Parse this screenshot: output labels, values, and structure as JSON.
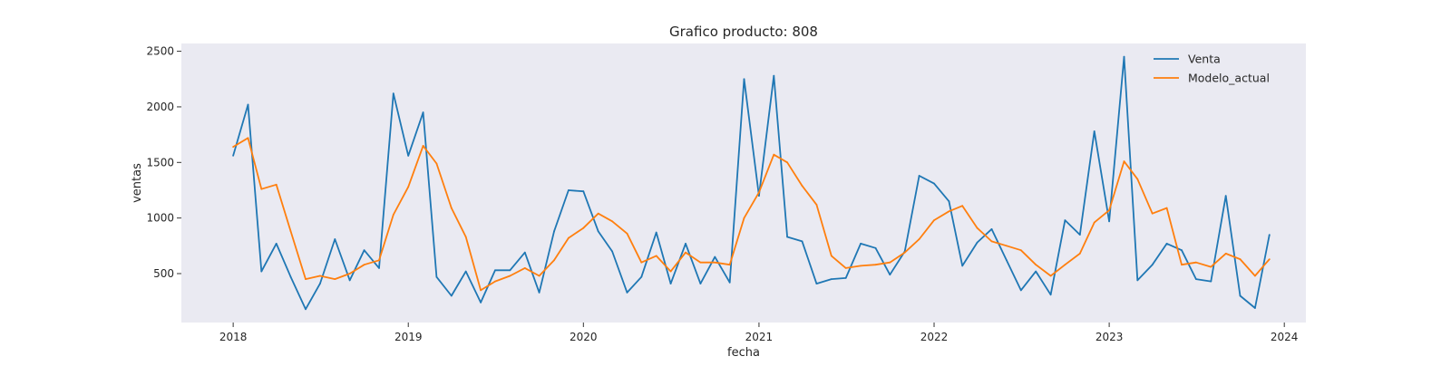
{
  "chart_data": {
    "type": "line",
    "title": "Grafico producto: 808",
    "xlabel": "fecha",
    "ylabel": "ventas",
    "xlim": [
      "2017-09-15",
      "2024-02-15"
    ],
    "ylim": [
      60,
      2570
    ],
    "xticks": [
      "2018",
      "2019",
      "2020",
      "2021",
      "2022",
      "2023",
      "2024"
    ],
    "yticks": [
      500,
      1000,
      1500,
      2000,
      2500
    ],
    "grid": false,
    "background": "#eaeaf2",
    "legend": "top-right",
    "x": [
      "2018-01",
      "2018-02",
      "2018-03",
      "2018-04",
      "2018-05",
      "2018-06",
      "2018-07",
      "2018-08",
      "2018-09",
      "2018-10",
      "2018-11",
      "2018-12",
      "2019-01",
      "2019-02",
      "2019-03",
      "2019-04",
      "2019-05",
      "2019-06",
      "2019-07",
      "2019-08",
      "2019-09",
      "2019-10",
      "2019-11",
      "2019-12",
      "2020-01",
      "2020-02",
      "2020-03",
      "2020-04",
      "2020-05",
      "2020-06",
      "2020-07",
      "2020-08",
      "2020-09",
      "2020-10",
      "2020-11",
      "2020-12",
      "2021-01",
      "2021-02",
      "2021-03",
      "2021-04",
      "2021-05",
      "2021-06",
      "2021-07",
      "2021-08",
      "2021-09",
      "2021-10",
      "2021-11",
      "2021-12",
      "2022-01",
      "2022-02",
      "2022-03",
      "2022-04",
      "2022-05",
      "2022-06",
      "2022-07",
      "2022-08",
      "2022-09",
      "2022-10",
      "2022-11",
      "2022-12",
      "2023-01",
      "2023-02",
      "2023-03",
      "2023-04",
      "2023-05",
      "2023-06",
      "2023-07",
      "2023-08",
      "2023-09",
      "2023-10",
      "2023-11",
      "2023-12"
    ],
    "series": [
      {
        "name": "Venta",
        "color": "#1f77b4",
        "values": [
          1560,
          2020,
          520,
          770,
          470,
          180,
          410,
          810,
          440,
          710,
          550,
          2120,
          1560,
          1950,
          470,
          300,
          520,
          240,
          530,
          530,
          690,
          330,
          880,
          1250,
          1240,
          880,
          700,
          330,
          470,
          870,
          410,
          770,
          410,
          650,
          420,
          2250,
          1200,
          2280,
          830,
          790,
          410,
          450,
          460,
          770,
          730,
          490,
          700,
          1380,
          1310,
          1150,
          570,
          780,
          900,
          620,
          350,
          520,
          310,
          980,
          850,
          1780,
          970,
          2450,
          440,
          580,
          770,
          710,
          450,
          430,
          1200,
          300,
          190,
          850
        ]
      },
      {
        "name": "Modelo_actual",
        "color": "#ff7f0e",
        "values": [
          1640,
          1720,
          1260,
          1300,
          880,
          450,
          480,
          450,
          500,
          580,
          620,
          1030,
          1280,
          1650,
          1490,
          1090,
          830,
          350,
          430,
          480,
          550,
          480,
          620,
          820,
          910,
          1040,
          970,
          860,
          600,
          660,
          520,
          690,
          600,
          600,
          580,
          1000,
          1230,
          1570,
          1500,
          1290,
          1120,
          660,
          550,
          570,
          580,
          600,
          690,
          810,
          980,
          1060,
          1110,
          910,
          790,
          750,
          710,
          580,
          480,
          580,
          680,
          960,
          1070,
          1510,
          1350,
          1040,
          1090,
          580,
          600,
          560,
          680,
          630,
          480,
          630
        ]
      }
    ]
  }
}
